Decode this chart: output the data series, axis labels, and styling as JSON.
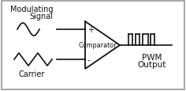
{
  "bg_color": "#ffffff",
  "border_color": "#aaaaaa",
  "line_color": "#111111",
  "text_color": "#111111",
  "fig_width": 2.36,
  "fig_height": 1.16,
  "dpi": 100,
  "modulating_label": [
    "Modulating",
    "Signal"
  ],
  "carrier_label": "Carrier",
  "comparator_label": "Comparator",
  "pwm_label": [
    "PWM",
    "Output"
  ],
  "plus_label": "+",
  "minus_label": "-",
  "xlim": [
    0,
    236
  ],
  "ylim": [
    0,
    116
  ]
}
